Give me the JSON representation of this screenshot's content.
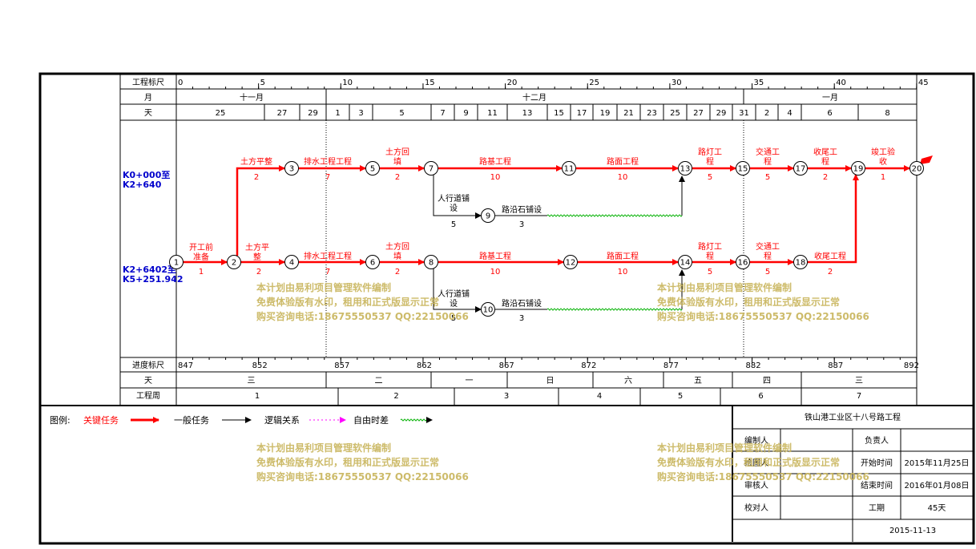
{
  "scale": {
    "row_labels": {
      "ruler": "工程标尺",
      "month": "月",
      "day": "天",
      "progress": "进度标尺",
      "weekday": "天",
      "week": "工程周"
    },
    "ruler_ticks": [
      "0",
      "5",
      "10",
      "15",
      "20",
      "25",
      "30",
      "35",
      "40",
      "45"
    ],
    "months": [
      "十一月",
      "十二月",
      "一月"
    ],
    "days": [
      "25",
      "27",
      "29",
      "1",
      "3",
      "5",
      "7",
      "9",
      "11",
      "13",
      "15",
      "17",
      "19",
      "21",
      "23",
      "25",
      "27",
      "29",
      "31",
      "2",
      "4",
      "6",
      "8"
    ],
    "progress_ticks": [
      "847",
      "852",
      "857",
      "862",
      "867",
      "872",
      "877",
      "882",
      "887",
      "892"
    ],
    "weekdays": [
      "三",
      "二",
      "一",
      "日",
      "六",
      "五",
      "四",
      "三"
    ],
    "weeks": [
      "1",
      "2",
      "3",
      "4",
      "5",
      "6",
      "7"
    ]
  },
  "sections": [
    {
      "label1": "K0+000至",
      "label2": "K2+640"
    },
    {
      "label1": "K2+6402至",
      "label2": "K5+251.942"
    }
  ],
  "nodes": [
    "1",
    "2",
    "3",
    "4",
    "5",
    "6",
    "7",
    "8",
    "9",
    "10",
    "11",
    "12",
    "13",
    "14",
    "15",
    "16",
    "17",
    "18",
    "19",
    "20"
  ],
  "tasks": {
    "t1": {
      "name": "开工前准备",
      "line1": "开工前",
      "line2": "准备",
      "dur": "1"
    },
    "t2": {
      "name": "土方平整",
      "dur": "2"
    },
    "t3": {
      "name": "土方平整",
      "line1": "土方平",
      "line2": "整",
      "dur": "2"
    },
    "t4": {
      "name": "排水工程工程",
      "dur": "7"
    },
    "t5": {
      "name": "排水工程工程",
      "dur": "7"
    },
    "t6": {
      "name": "土方回填",
      "line1": "土方回",
      "line2": "填",
      "dur": "2"
    },
    "t7": {
      "name": "土方回填",
      "line1": "土方回",
      "line2": "填",
      "dur": "2"
    },
    "t8": {
      "name": "路基工程",
      "dur": "10"
    },
    "t9": {
      "name": "路基工程",
      "dur": "10"
    },
    "t10": {
      "name": "路面工程",
      "dur": "10"
    },
    "t11": {
      "name": "路面工程",
      "dur": "10"
    },
    "t12": {
      "name": "路灯工程",
      "line1": "路灯工",
      "line2": "程",
      "dur": "5"
    },
    "t13": {
      "name": "路灯工程",
      "line1": "路灯工",
      "line2": "程",
      "dur": "5"
    },
    "t14": {
      "name": "交通工程",
      "line1": "交通工",
      "line2": "程",
      "dur": "5"
    },
    "t15": {
      "name": "交通工程",
      "line1": "交通工",
      "line2": "程",
      "dur": "5"
    },
    "t16": {
      "name": "收尾工程",
      "line1": "收尾工",
      "line2": "程",
      "dur": "2"
    },
    "t17": {
      "name": "收尾工程",
      "dur": "2"
    },
    "t18": {
      "name": "竣工验收",
      "line1": "竣工验",
      "line2": "收",
      "dur": "1"
    },
    "t19": {
      "name": "人行道铺设",
      "line1": "人行道铺",
      "line2": "设",
      "dur": "5"
    },
    "t20": {
      "name": "人行道铺设",
      "line1": "人行道铺",
      "line2": "设",
      "dur": "5"
    },
    "t21": {
      "name": "路沿石铺设",
      "dur": "3"
    },
    "t22": {
      "name": "路沿石铺设",
      "dur": "3"
    }
  },
  "watermark": {
    "line1": "本计划由易利项目管理软件编制",
    "line2": "免费体验版有水印，租用和正式版显示正常",
    "line3": "购买咨询电话:18675550537 QQ:22150066"
  },
  "legend": {
    "label": "图例:",
    "critical": "关键任务",
    "normal": "一般任务",
    "logic": "逻辑关系",
    "float": "自由时差"
  },
  "info": {
    "project": "铁山港工业区十八号路工程",
    "compiler": "编制人",
    "responsible": "负责人",
    "drafter": "绘图人",
    "start_label": "开始时间",
    "start_value": "2015年11月25日",
    "reviewer": "审核人",
    "end_label": "结束时间",
    "end_value": "2016年01月08日",
    "checker": "校对人",
    "duration_label": "工期",
    "duration_value": "45天",
    "date": "2015-11-13"
  },
  "colors": {
    "critical": "#ff0000",
    "normal": "#000000",
    "float": "#00b000",
    "logic": "#ff00ff",
    "label_blue": "#0000cc",
    "watermark": "#c8b45a"
  }
}
